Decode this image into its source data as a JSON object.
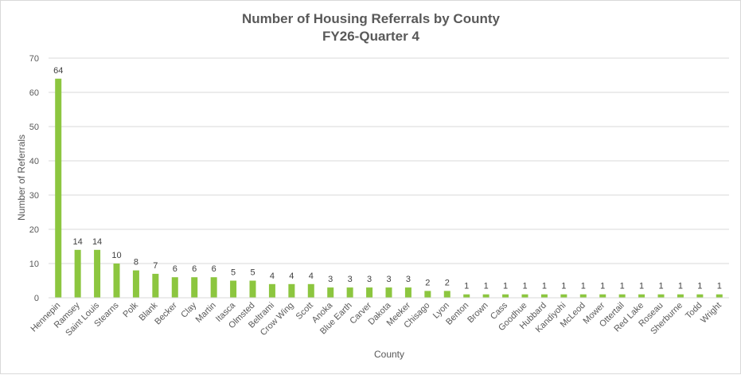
{
  "chart_data": {
    "type": "bar",
    "title": "Number of Housing Referrals by County",
    "subtitle": "FY26-Quarter 4",
    "xlabel": "County",
    "ylabel": "Number of Referrals",
    "ylim": [
      0,
      70
    ],
    "yticks": [
      0,
      10,
      20,
      30,
      40,
      50,
      60,
      70
    ],
    "grid": true,
    "legend": "none",
    "bar_color": "#8cc63f",
    "categories": [
      "Hennepin",
      "Ramsey",
      "Saint Louis",
      "Stearns",
      "Polk",
      "Blank",
      "Becker",
      "Clay",
      "Martin",
      "Itasca",
      "Olmsted",
      "Beltrami",
      "Crow Wing",
      "Scott",
      "Anoka",
      "Blue Earth",
      "Carver",
      "Dakota",
      "Meeker",
      "Chisago",
      "Lyon",
      "Benton",
      "Brown",
      "Cass",
      "Goodhue",
      "Hubbard",
      "Kandiyohi",
      "McLeod",
      "Mower",
      "Ottertail",
      "Red Lake",
      "Roseau",
      "Sherburne",
      "Todd",
      "Wright"
    ],
    "values": [
      64,
      14,
      14,
      10,
      8,
      7,
      6,
      6,
      6,
      5,
      5,
      4,
      4,
      4,
      3,
      3,
      3,
      3,
      3,
      2,
      2,
      1,
      1,
      1,
      1,
      1,
      1,
      1,
      1,
      1,
      1,
      1,
      1,
      1,
      1
    ]
  }
}
